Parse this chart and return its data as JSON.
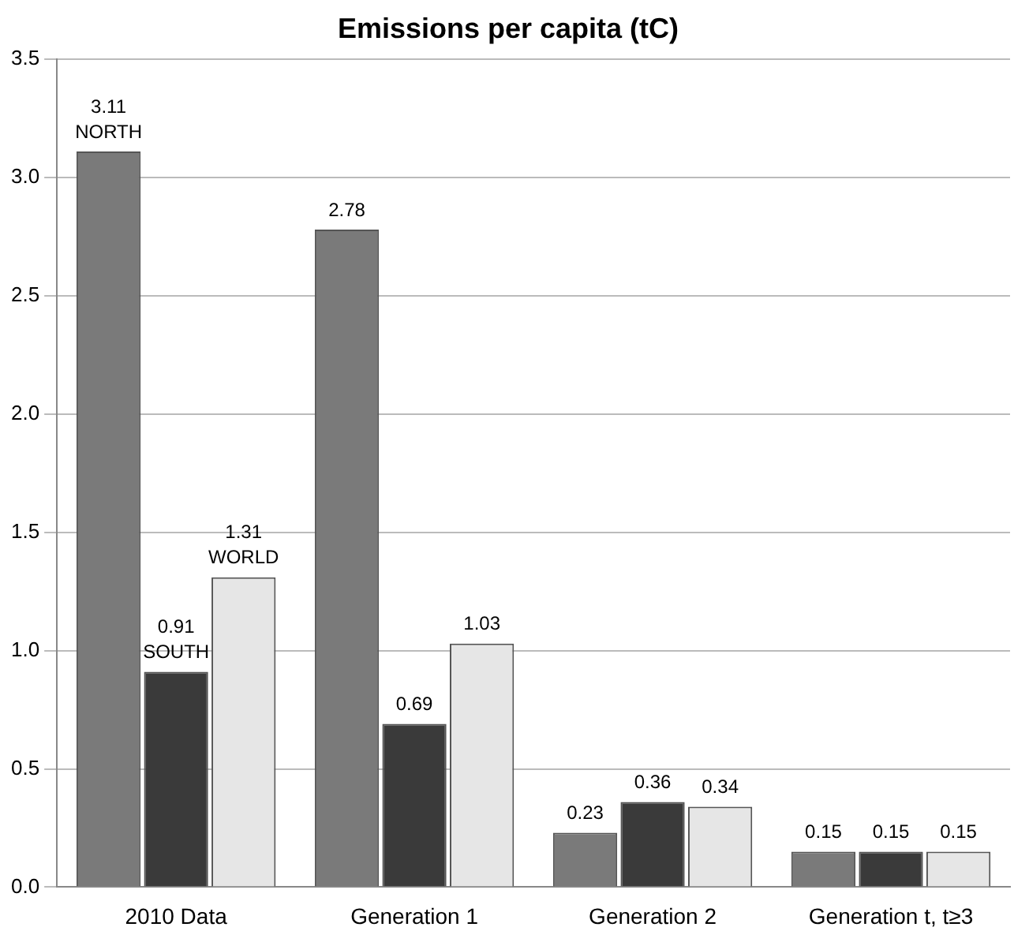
{
  "chart_data": {
    "type": "bar",
    "title": "Emissions per capita (tC)",
    "categories": [
      "2010 Data",
      "Generation 1",
      "Generation 2",
      "Generation t, t≥3"
    ],
    "series": [
      {
        "name": "NORTH",
        "color": "#7a7a7a",
        "values": [
          3.11,
          2.78,
          0.23,
          0.15
        ]
      },
      {
        "name": "SOUTH",
        "color": "#3a3a3a",
        "values": [
          0.91,
          0.69,
          0.36,
          0.15
        ]
      },
      {
        "name": "WORLD",
        "color": "#e6e6e6",
        "values": [
          1.31,
          1.03,
          0.34,
          0.15
        ]
      }
    ],
    "ylim": [
      0,
      3.5
    ],
    "yticks": [
      {
        "value": 0,
        "label": "0.0"
      },
      {
        "value": 0.5,
        "label": "0.5"
      },
      {
        "value": 1,
        "label": "1.0"
      },
      {
        "value": 1.5,
        "label": "1.5"
      },
      {
        "value": 2,
        "label": "2.0"
      },
      {
        "value": 2.5,
        "label": "2.5"
      },
      {
        "value": 3,
        "label": "3.0"
      },
      {
        "value": 3.5,
        "label": "3.5"
      }
    ],
    "grid": "y",
    "legend": false,
    "data_labels": true
  }
}
